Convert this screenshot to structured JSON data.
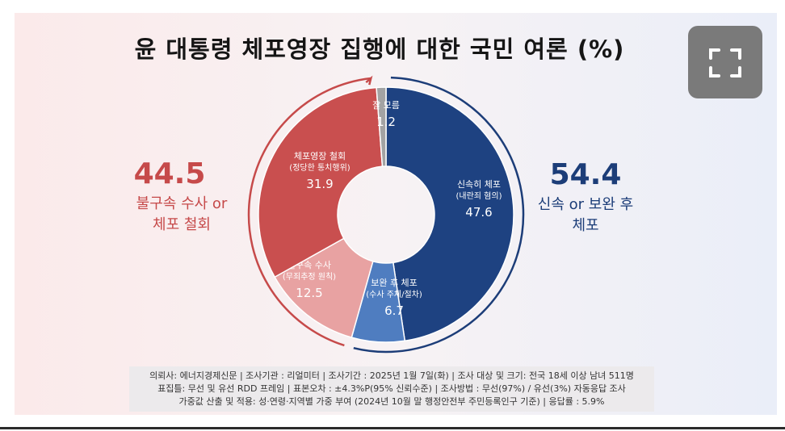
{
  "title": "윤 대통령 체포영장 집행에 대한 국민 여론 (%)",
  "expand_button": {
    "icon": "fullscreen-icon"
  },
  "groups": {
    "left": {
      "value": "44.5",
      "label_line1": "불구속 수사 or",
      "label_line2": "체포 철회",
      "color": "#c64a4a"
    },
    "right": {
      "value": "54.4",
      "label_line1": "신속 or 보완 후",
      "label_line2": "체포",
      "color": "#1c3d78"
    }
  },
  "chart_data": {
    "type": "pie",
    "title": "윤 대통령 체포영장 집행에 대한 국민 여론 (%)",
    "unit": "%",
    "donut": true,
    "slices": [
      {
        "label": "신속히 체포",
        "sublabel": "(내란죄 혐의)",
        "value": 47.6,
        "value_label": "47.6",
        "color": "#1e4281"
      },
      {
        "label": "보완 후 체포",
        "sublabel": "(수사 주체/절차)",
        "value": 6.7,
        "value_label": "6.7",
        "color": "#4f7dc0"
      },
      {
        "label": "불구속 수사",
        "sublabel": "(무죄추정 원칙)",
        "value": 12.5,
        "value_label": "12.5",
        "color": "#e8a2a2"
      },
      {
        "label": "체포영장 철회",
        "sublabel": "(정당한 통치행위)",
        "value": 31.9,
        "value_label": "31.9",
        "color": "#c94f4f"
      },
      {
        "label": "잘 모름",
        "sublabel": "",
        "value": 1.2,
        "value_label": "1.2",
        "color": "#a3a3a3"
      }
    ],
    "groups": [
      {
        "label": "신속 or 보완 후 체포",
        "value": 54.4,
        "color": "#1c3d78"
      },
      {
        "label": "불구속 수사 or 체포 철회",
        "value": 44.5,
        "color": "#c64a4a"
      }
    ]
  },
  "footnote": {
    "line1": "의뢰사: 에너지경제신문 | 조사기관 : 리얼미터  |  조사기간 : 2025년 1월 7일(화) | 조사 대상 및 크기: 전국 18세 이상 남녀 511명",
    "line2": "표집틀: 무선 및 유선 RDD 프레임 | 표본오차 : ±4.3%P(95% 신뢰수준) | 조사방법 : 무선(97%) / 유선(3%) 자동응답 조사",
    "line3": "가중값 산출 및 적용: 성·연령·지역별 가중 부여 (2024년 10월 말 행정안전부 주민등록인구 기준) | 응답률 : 5.9%"
  }
}
